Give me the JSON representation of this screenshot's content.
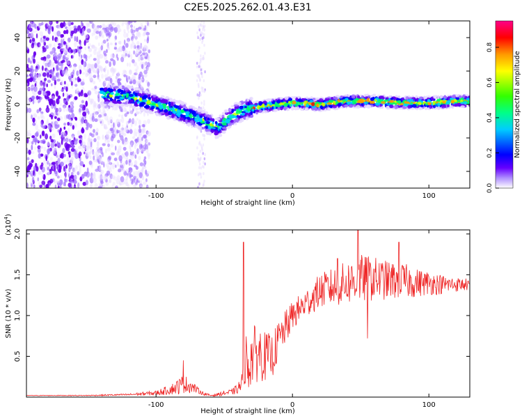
{
  "title": "C2E5.2025.262.01.43.E31",
  "colors": {
    "axis": "#000000",
    "snr_line": "#ee2222"
  },
  "chart_data": [
    {
      "type": "heatmap",
      "name": "spectrogram",
      "xlabel": "Height of straight line (km)",
      "ylabel": "Frequency (Hz)",
      "xlim": [
        -195,
        130
      ],
      "ylim": [
        -50,
        50
      ],
      "x_tick_values": [
        -100,
        0,
        100
      ],
      "x_tick_labels": [
        "-100",
        "0",
        "100"
      ],
      "y_tick_values": [
        40,
        20,
        0,
        -20,
        -40
      ],
      "y_tick_labels": [
        "40",
        "20",
        "0",
        "-20",
        "-40"
      ],
      "colorbar": {
        "label": "Normalized spectral amplitude",
        "range": [
          0,
          0.95
        ],
        "tick_values": [
          0.0,
          0.2,
          0.4,
          0.6,
          0.8
        ],
        "tick_labels": [
          "0.0",
          "0.2",
          "0.4",
          "0.6",
          "0.8"
        ],
        "colormap": [
          "#ffffff",
          "#8800ff",
          "#0000ff",
          "#00ffff",
          "#00ff00",
          "#ffff00",
          "#ff8800",
          "#ff0000",
          "#ff0088"
        ]
      },
      "ridge_x": [
        -140,
        -120,
        -100,
        -80,
        -65,
        -55,
        -45,
        -35,
        -20,
        0,
        20,
        40,
        60,
        80,
        100,
        120,
        130
      ],
      "ridge_y": [
        6,
        5,
        0,
        -5,
        -10,
        -14,
        -7,
        -3,
        -1,
        1,
        0,
        2,
        2,
        1,
        1,
        2,
        2
      ]
    },
    {
      "type": "line",
      "name": "snr",
      "xlabel": "Height of straight line (km)",
      "ylabel": "SNR (10 * v/v)",
      "y_multiplier_label": "(x10",
      "y_multiplier_exp": "4",
      "y_multiplier_close": ")",
      "xlim": [
        -195,
        130
      ],
      "ylim": [
        0,
        2.05
      ],
      "x_tick_values": [
        -100,
        0,
        100
      ],
      "x_tick_labels": [
        "-100",
        "0",
        "100"
      ],
      "y_tick_values": [
        2.0,
        1.5,
        1.0,
        0.5
      ],
      "y_tick_labels": [
        "2.0",
        "1.5",
        "1.0",
        "0.5"
      ],
      "series": [
        {
          "name": "SNR",
          "x": [
            -195,
            -150,
            -120,
            -100,
            -90,
            -85,
            -80,
            -75,
            -70,
            -65,
            -60,
            -55,
            -50,
            -45,
            -40,
            -36,
            -35,
            -33,
            -30,
            -25,
            -20,
            -15,
            -10,
            -5,
            0,
            10,
            20,
            30,
            40,
            50,
            60,
            70,
            80,
            90,
            100,
            110,
            120,
            130
          ],
          "base": [
            0.02,
            0.02,
            0.03,
            0.05,
            0.09,
            0.12,
            0.16,
            0.14,
            0.09,
            0.04,
            0.02,
            0.03,
            0.05,
            0.06,
            0.1,
            0.2,
            0.55,
            0.35,
            0.5,
            0.55,
            0.5,
            0.5,
            0.7,
            0.85,
            1.0,
            1.15,
            1.3,
            1.35,
            1.4,
            1.45,
            1.45,
            1.43,
            1.43,
            1.4,
            1.4,
            1.38,
            1.38,
            1.38
          ],
          "spread": [
            0.005,
            0.01,
            0.02,
            0.05,
            0.1,
            0.15,
            0.2,
            0.15,
            0.07,
            0.03,
            0.02,
            0.03,
            0.05,
            0.06,
            0.1,
            0.3,
            0.7,
            0.5,
            0.6,
            0.6,
            0.5,
            0.45,
            0.4,
            0.35,
            0.3,
            0.3,
            0.35,
            0.4,
            0.45,
            0.5,
            0.45,
            0.4,
            0.38,
            0.3,
            0.25,
            0.2,
            0.15,
            0.12
          ],
          "peaks": [
            [
              -36,
              1.9
            ],
            [
              -80,
              0.45
            ],
            [
              48,
              2.05
            ],
            [
              33,
              1.7
            ],
            [
              78,
              1.9
            ],
            [
              55,
              0.72
            ]
          ]
        }
      ]
    }
  ]
}
